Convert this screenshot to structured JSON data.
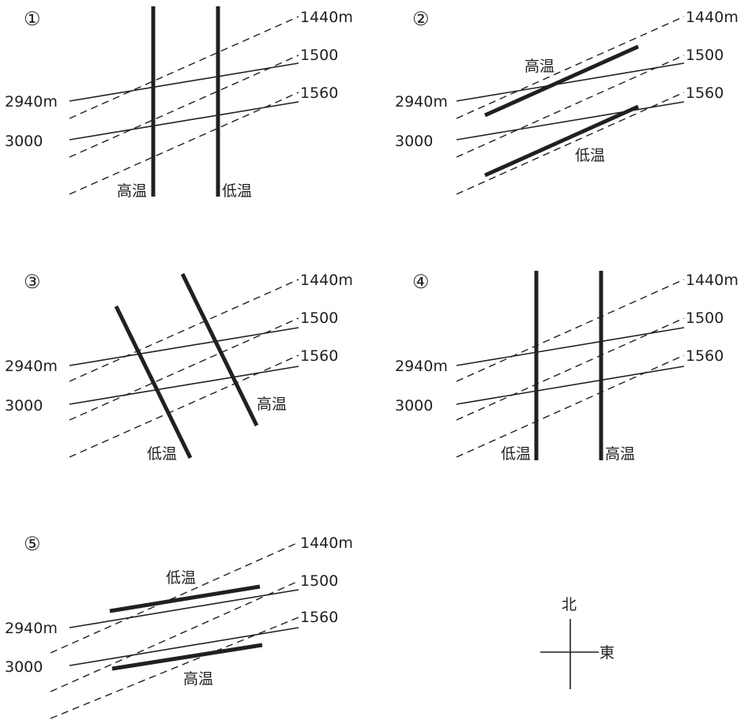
{
  "panels": [
    {
      "number": "①",
      "depth_labels": {
        "d1440": "1440m",
        "d1500": "1500",
        "d1560": "1560"
      },
      "elev_labels": {
        "e2940": "2940m",
        "e3000": "3000"
      },
      "zone_labels": [
        "高温",
        "低温"
      ]
    },
    {
      "number": "②",
      "depth_labels": {
        "d1440": "1440m",
        "d1500": "1500",
        "d1560": "1560"
      },
      "elev_labels": {
        "e2940": "2940m",
        "e3000": "3000"
      },
      "zone_labels": [
        "高温",
        "低温"
      ]
    },
    {
      "number": "③",
      "depth_labels": {
        "d1440": "1440m",
        "d1500": "1500",
        "d1560": "1560"
      },
      "elev_labels": {
        "e2940": "2940m",
        "e3000": "3000"
      },
      "zone_labels": [
        "低温",
        "高温"
      ]
    },
    {
      "number": "④",
      "depth_labels": {
        "d1440": "1440m",
        "d1500": "1500",
        "d1560": "1560"
      },
      "elev_labels": {
        "e2940": "2940m",
        "e3000": "3000"
      },
      "zone_labels": [
        "低温",
        "高温"
      ]
    },
    {
      "number": "⑤",
      "depth_labels": {
        "d1440": "1440m",
        "d1500": "1500",
        "d1560": "1560"
      },
      "elev_labels": {
        "e2940": "2940m",
        "e3000": "3000"
      },
      "zone_labels": [
        "低温",
        "高温"
      ]
    }
  ],
  "compass": {
    "north": "北",
    "east": "東"
  }
}
